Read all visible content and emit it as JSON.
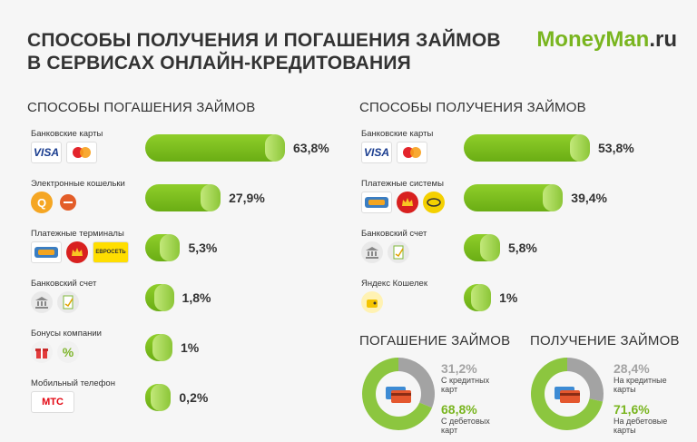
{
  "title_line1": "СПОСОБЫ ПОЛУЧЕНИЯ И ПОГАШЕНИЯ ЗАЙМОВ",
  "title_line2": "В СЕРВИСАХ ОНЛАЙН-КРЕДИТОВАНИЯ",
  "brand_green": "MoneyMan",
  "brand_dark": ".ru",
  "colors": {
    "green": "#79b51f",
    "gray": "#a3a3a3"
  },
  "chart_data": [
    {
      "type": "bar",
      "title": "СПОСОБЫ ПОГАШЕНИЯ ЗАЙМОВ",
      "categories": [
        "Банковские карты",
        "Электронные кошельки",
        "Платежные терминалы",
        "Банковский счет",
        "Бонусы компании",
        "Мобильный телефон"
      ],
      "values": [
        63.8,
        27.9,
        5.3,
        1.8,
        1,
        0.2
      ],
      "value_labels": [
        "63,8%",
        "27,9%",
        "5,3%",
        "1,8%",
        "1%",
        "0,2%"
      ],
      "logos": [
        [
          {
            "name": "visa-icon",
            "text": "VISA"
          },
          {
            "name": "mastercard-icon",
            "text": ""
          }
        ],
        [
          {
            "name": "qiwi-icon",
            "text": "Q"
          },
          {
            "name": "webmoney-icon",
            "text": ""
          }
        ],
        [
          {
            "name": "terminal-icon",
            "text": ""
          },
          {
            "name": "crown-icon",
            "text": ""
          },
          {
            "name": "euroset-icon",
            "text": "ЕВРОСЕТЬ"
          }
        ],
        [
          {
            "name": "bank-icon",
            "text": ""
          },
          {
            "name": "document-icon",
            "text": ""
          }
        ],
        [
          {
            "name": "gift-icon",
            "text": ""
          },
          {
            "name": "percent-icon",
            "text": "%"
          }
        ],
        [
          {
            "name": "mts-icon",
            "text": "МТС"
          }
        ]
      ]
    },
    {
      "type": "bar",
      "title": "СПОСОБЫ ПОЛУЧЕНИЯ ЗАЙМОВ",
      "categories": [
        "Банковские карты",
        "Платежные системы",
        "Банковский счет",
        "Яндекс Кошелек"
      ],
      "values": [
        53.8,
        39.4,
        5.8,
        1
      ],
      "value_labels": [
        "53,8%",
        "39,4%",
        "5,8%",
        "1%"
      ],
      "logos": [
        [
          {
            "name": "visa-icon",
            "text": "VISA"
          },
          {
            "name": "mastercard-icon",
            "text": ""
          }
        ],
        [
          {
            "name": "terminal-icon",
            "text": ""
          },
          {
            "name": "crown-icon",
            "text": ""
          },
          {
            "name": "golden-crown-icon",
            "text": ""
          }
        ],
        [
          {
            "name": "bank-icon",
            "text": ""
          },
          {
            "name": "document-icon",
            "text": ""
          }
        ],
        [
          {
            "name": "yandex-wallet-icon",
            "text": ""
          }
        ]
      ]
    },
    {
      "type": "pie",
      "title": "ПОГАШЕНИЕ ЗАЙМОВ",
      "values": [
        31.2,
        68.8
      ],
      "value_labels": [
        "31,2%",
        "68,8%"
      ],
      "labels": [
        "С кредитных карт",
        "С дебетовых карт"
      ]
    },
    {
      "type": "pie",
      "title": "ПОЛУЧЕНИЕ ЗАЙМОВ",
      "values": [
        28.4,
        71.6
      ],
      "value_labels": [
        "28,4%",
        "71,6%"
      ],
      "labels": [
        "На кредитные карты",
        "На дебетовые карты"
      ]
    }
  ]
}
